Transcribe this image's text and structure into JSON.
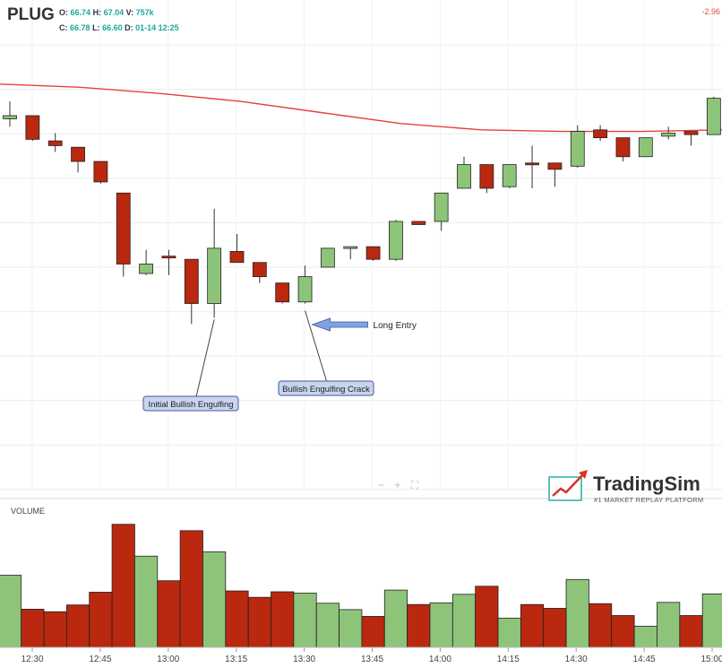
{
  "header": {
    "ticker": "PLUG",
    "open_label": "O:",
    "open": "66.74",
    "high_label": "H:",
    "high": "67.04",
    "volume_label": "V:",
    "volume": "757k",
    "close_label": "C:",
    "close": "66.78",
    "low_label": "L:",
    "low": "66.60",
    "date_label": "D:",
    "date": "01-14 12:25",
    "change": "-2.96"
  },
  "volume_label": "VOLUME",
  "zoom_controls": [
    "−",
    "+",
    "⛶"
  ],
  "logo": {
    "name": "TradingSim",
    "tagline": "#1 MARKET REPLAY PLATFORM"
  },
  "colors": {
    "up": "#8dc47a",
    "down": "#b9280f",
    "ma_line": "#e8413a",
    "callout_fill": "#c9d4ef",
    "callout_border": "#3f5a9a",
    "arrow": "#7fa3e0",
    "accent": "#1aa99a"
  },
  "chart_data": {
    "type": "candlestick",
    "x_ticks": [
      "12:30",
      "12:45",
      "13:00",
      "13:15",
      "13:30",
      "13:45",
      "14:00",
      "14:15",
      "14:30",
      "14:45",
      "15:00"
    ],
    "price_range": [
      54.4,
      68.6
    ],
    "grid": true,
    "moving_average": [
      67.3,
      67.2,
      67.0,
      66.75,
      66.4,
      66.05,
      65.85,
      65.8,
      65.8,
      65.85
    ],
    "candles": [
      {
        "o": 66.2,
        "h": 66.75,
        "l": 65.95,
        "c": 66.3
      },
      {
        "o": 66.3,
        "h": 66.3,
        "l": 65.5,
        "c": 65.55
      },
      {
        "o": 65.5,
        "h": 65.75,
        "l": 65.15,
        "c": 65.35
      },
      {
        "o": 65.3,
        "h": 65.3,
        "l": 64.5,
        "c": 64.85
      },
      {
        "o": 64.85,
        "h": 64.85,
        "l": 64.15,
        "c": 64.2
      },
      {
        "o": 63.85,
        "h": 63.85,
        "l": 61.2,
        "c": 61.6
      },
      {
        "o": 61.3,
        "h": 62.05,
        "l": 61.25,
        "c": 61.6
      },
      {
        "o": 61.85,
        "h": 62.05,
        "l": 61.25,
        "c": 61.8
      },
      {
        "o": 61.75,
        "h": 61.75,
        "l": 59.7,
        "c": 60.35
      },
      {
        "o": 60.35,
        "h": 63.35,
        "l": 59.9,
        "c": 62.1
      },
      {
        "o": 62.0,
        "h": 62.55,
        "l": 61.65,
        "c": 61.65
      },
      {
        "o": 61.65,
        "h": 61.65,
        "l": 61.0,
        "c": 61.2
      },
      {
        "o": 61.0,
        "h": 61.0,
        "l": 60.35,
        "c": 60.4
      },
      {
        "o": 60.4,
        "h": 61.55,
        "l": 60.35,
        "c": 61.2
      },
      {
        "o": 61.5,
        "h": 62.1,
        "l": 61.55,
        "c": 62.1
      },
      {
        "o": 62.15,
        "h": 62.15,
        "l": 61.75,
        "c": 62.15
      },
      {
        "o": 62.15,
        "h": 62.15,
        "l": 61.7,
        "c": 61.75
      },
      {
        "o": 61.75,
        "h": 63.0,
        "l": 61.7,
        "c": 62.95
      },
      {
        "o": 62.95,
        "h": 62.95,
        "l": 62.85,
        "c": 62.85
      },
      {
        "o": 62.95,
        "h": 63.85,
        "l": 62.65,
        "c": 63.85
      },
      {
        "o": 64.0,
        "h": 65.0,
        "l": 64.0,
        "c": 64.75
      },
      {
        "o": 64.75,
        "h": 64.75,
        "l": 63.85,
        "c": 64.0
      },
      {
        "o": 64.05,
        "h": 64.75,
        "l": 64.0,
        "c": 64.75
      },
      {
        "o": 64.8,
        "h": 65.35,
        "l": 64.0,
        "c": 64.75
      },
      {
        "o": 64.8,
        "h": 64.8,
        "l": 64.05,
        "c": 64.6
      },
      {
        "o": 64.7,
        "h": 66.0,
        "l": 64.65,
        "c": 65.8
      },
      {
        "o": 65.85,
        "h": 66.0,
        "l": 65.5,
        "c": 65.6
      },
      {
        "o": 65.6,
        "h": 65.6,
        "l": 64.85,
        "c": 65.0
      },
      {
        "o": 65.0,
        "h": 65.6,
        "l": 65.0,
        "c": 65.6
      },
      {
        "o": 65.65,
        "h": 65.95,
        "l": 65.55,
        "c": 65.75
      },
      {
        "o": 65.8,
        "h": 65.8,
        "l": 65.35,
        "c": 65.7
      },
      {
        "o": 65.7,
        "h": 66.9,
        "l": 65.7,
        "c": 66.85
      }
    ],
    "volumes": [
      17,
      9,
      8.4,
      10,
      13,
      29,
      21.5,
      15.7,
      27.5,
      22.5,
      13.3,
      11.8,
      13.1,
      12.8,
      10.4,
      8.9,
      7.3,
      13.5,
      10.1,
      10.5,
      12.5,
      14.4,
      6.9,
      10.1,
      9.2,
      16,
      10.3,
      7.5,
      5,
      10.6,
      7.5,
      12.6
    ],
    "volume_max": 30,
    "annotations": [
      {
        "text": "Initial Bullish Engulfing",
        "candle": 9
      },
      {
        "text": "Bullish Engulfing Crack",
        "candle": 13
      },
      {
        "text": "Long Entry",
        "candle": 13
      }
    ]
  }
}
